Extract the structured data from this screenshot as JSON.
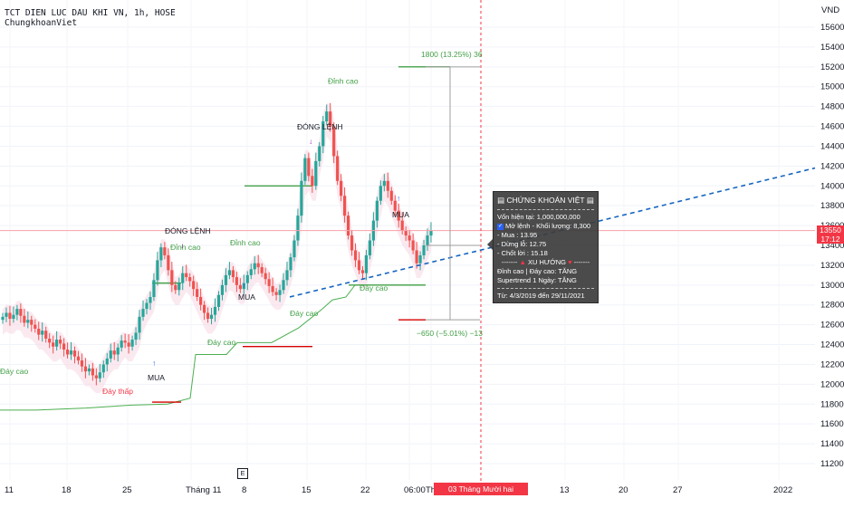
{
  "header": {
    "symbol_line": "TCT DIEN LUC DAU KHI VN, 1h, HOSE",
    "indicator": "ChungkhoanViet"
  },
  "colors": {
    "up": "#26a69a",
    "down": "#ef5350",
    "trend_line": "#1565c0",
    "supertrend": "#4caf50",
    "stop_line": "#d50000",
    "take_line": "#43a047",
    "band_fill": "#f8d7e3",
    "price_line": "#f7a1a8",
    "cursor_line": "#f23645",
    "signal_buy": "#2962ff",
    "signal_close": "#9c27b0"
  },
  "chart_data": {
    "type": "candlestick",
    "currency": "VND",
    "ylim": [
      11100,
      15800
    ],
    "y_ticks": [
      11200,
      11400,
      11600,
      11800,
      12000,
      12200,
      12400,
      12600,
      12800,
      13000,
      13200,
      13400,
      13600,
      13800,
      14000,
      14200,
      14400,
      14600,
      14800,
      15000,
      15200,
      15400,
      15600
    ],
    "x_ticks": [
      "11",
      "18",
      "25",
      "Tháng 11",
      "8",
      "15",
      "22",
      "06:00",
      "Thá",
      "13",
      "20",
      "27",
      "2022"
    ],
    "last_price": "13550",
    "countdown": "17:12",
    "cursor_date": "03 Tháng Mười hai '21",
    "cursor_time": "05:00",
    "events_marker": "E",
    "closes": [
      12680,
      12720,
      12660,
      12700,
      12760,
      12690,
      12620,
      12650,
      12600,
      12560,
      12500,
      12540,
      12460,
      12420,
      12380,
      12450,
      12410,
      12350,
      12300,
      12340,
      12280,
      12240,
      12180,
      12130,
      12160,
      12090,
      12060,
      12120,
      12200,
      12260,
      12340,
      12300,
      12370,
      12440,
      12420,
      12380,
      12450,
      12520,
      12680,
      12760,
      12820,
      12880,
      13050,
      13250,
      13380,
      13300,
      13150,
      13000,
      12950,
      13020,
      13120,
      13080,
      13040,
      12960,
      12880,
      12800,
      12720,
      12660,
      12700,
      12780,
      12900,
      13000,
      13100,
      13150,
      13080,
      13000,
      12960,
      13020,
      13100,
      13160,
      13220,
      13180,
      13120,
      13060,
      12990,
      12930,
      12900,
      12950,
      13050,
      13150,
      13280,
      13450,
      13700,
      14050,
      14280,
      14100,
      14000,
      14250,
      14400,
      14650,
      14750,
      14600,
      14300,
      14050,
      13900,
      13700,
      13500,
      13350,
      13250,
      13150,
      13120,
      13300,
      13450,
      13650,
      13850,
      14000,
      14050,
      13950,
      13850,
      13750,
      13650,
      13550,
      13500,
      13450,
      13350,
      13220,
      13300,
      13400,
      13500,
      13550
    ],
    "annotations": {
      "dinh_cao": "Đỉnh cao",
      "day_cao": "Đáy cao",
      "day_thap": "Đáy thấp",
      "mua": "MUA",
      "dong_lenh": "ĐÓNG LỆNH"
    },
    "measure": {
      "top_label": "1800 (13.25%) 36",
      "bottom_label": "−650 (−5.01%) −13"
    }
  },
  "info_panel": {
    "title": "CHỨNG KHOÁN VIỆT",
    "capital": "Vốn hiện tại: 1,000,000,000",
    "open_order": "Mở lệnh - Khối lượng: 8,300",
    "buy": "- Mua   : 13.95",
    "stop": "- Dừng lỗ: 12.75",
    "take": "- Chốt lời : 15.18",
    "trend_title": "XU HƯỚNG",
    "trend_line1": "Đỉnh cao | Đáy cao: TĂNG",
    "trend_line2": "Supertrend 1 Ngày: TĂNG",
    "range": "Từ: 4/3/2019 đến 29/11/2021"
  }
}
